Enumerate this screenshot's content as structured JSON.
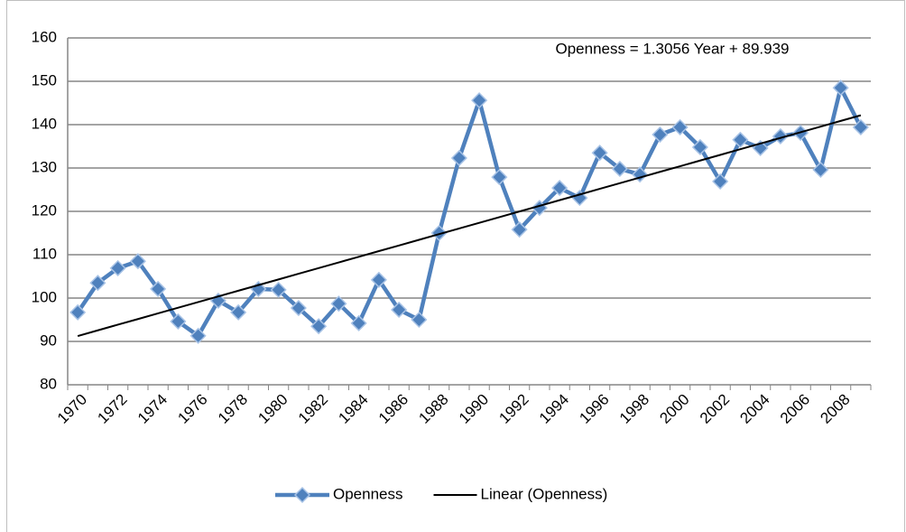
{
  "chart_data": {
    "type": "line",
    "categories": [
      "1970",
      null,
      "1972",
      null,
      "1974",
      null,
      "1976",
      null,
      "1978",
      null,
      "1980",
      null,
      "1982",
      null,
      "1984",
      null,
      "1986",
      null,
      "1988",
      null,
      "1990",
      null,
      "1992",
      null,
      "1994",
      null,
      "1996",
      null,
      "1998",
      null,
      "2000",
      null,
      "2002",
      null,
      "2004",
      null,
      "2006",
      null,
      "2008",
      null
    ],
    "series": [
      {
        "name": "Openness",
        "color": "#4f81bd",
        "marker": "diamond",
        "values": [
          96.7,
          103.5,
          106.9,
          108.5,
          102.1,
          94.6,
          91.3,
          99.4,
          96.7,
          102.1,
          101.9,
          97.7,
          93.5,
          98.7,
          94.2,
          104.2,
          97.3,
          95.0,
          115.0,
          132.3,
          145.6,
          127.9,
          115.8,
          120.8,
          125.4,
          123.1,
          133.5,
          129.8,
          128.5,
          137.7,
          139.4,
          134.8,
          126.9,
          136.5,
          134.6,
          137.3,
          138.1,
          129.6,
          148.5,
          139.4
        ]
      },
      {
        "name": "Linear (Openness)",
        "color": "#000000",
        "values": [
          91.24,
          92.55,
          93.86,
          95.16,
          96.47,
          97.77,
          99.08,
          100.38,
          101.69,
          102.99,
          104.3,
          105.61,
          106.91,
          108.22,
          109.52,
          110.83,
          112.13,
          113.44,
          114.75,
          116.05,
          117.36,
          118.66,
          119.97,
          121.27,
          122.58,
          123.88,
          125.19,
          126.5,
          127.8,
          129.11,
          130.41,
          131.72,
          133.02,
          134.33,
          135.64,
          136.94,
          138.25,
          139.55,
          140.86,
          142.16
        ]
      }
    ],
    "annotation": "Openness = 1.3056 Year + 89.939",
    "ylim": [
      80,
      160
    ],
    "yticks": [
      80,
      90,
      100,
      110,
      120,
      130,
      140,
      150,
      160
    ],
    "grid": true,
    "legend": "bottom"
  }
}
